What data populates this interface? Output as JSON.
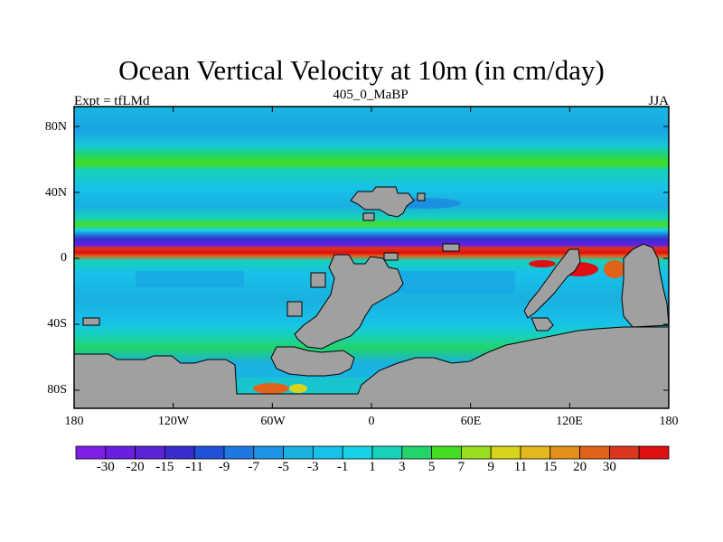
{
  "title": "Ocean Vertical Velocity at 10m (in cm/day)",
  "subtitle_left": "Expt = tfLMd",
  "subtitle_center": "405_0_MaBP",
  "subtitle_right": "JJA",
  "lat_ticks": [
    "80N",
    "40N",
    "0",
    "40S",
    "80S"
  ],
  "lon_ticks": [
    "180",
    "120W",
    "60W",
    "0",
    "60E",
    "120E",
    "180"
  ],
  "colorbar": {
    "labels": [
      "-30",
      "-20",
      "-15",
      "-11",
      "-9",
      "-7",
      "-5",
      "-3",
      "-1",
      "1",
      "3",
      "5",
      "7",
      "9",
      "11",
      "15",
      "20",
      "30"
    ],
    "colors": [
      "#7f1fe6",
      "#6a1fe0",
      "#5a23d6",
      "#3a2ccf",
      "#1f52d9",
      "#1e78e0",
      "#1e95e6",
      "#1ab0e0",
      "#17c2e8",
      "#17d2e6",
      "#17d2b8",
      "#22d46a",
      "#44dd22",
      "#9adf1d",
      "#d7d41c",
      "#e4b81c",
      "#e3901b",
      "#e0621b",
      "#d9361b",
      "#e00f12"
    ]
  },
  "land_color": "#a0a0a0"
}
